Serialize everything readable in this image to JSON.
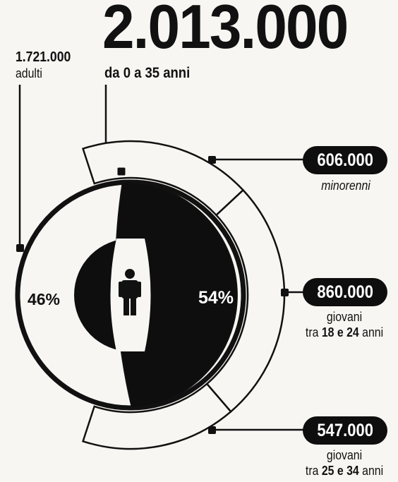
{
  "header": {
    "total": "2.013.000",
    "subtitle": "da 0 a 35 anni"
  },
  "adults": {
    "value": "1.721.000",
    "label": "adulti"
  },
  "groups": [
    {
      "value": "606.000",
      "label": "minorenni"
    },
    {
      "value": "860.000",
      "label_prefix": "giovani",
      "label_mid": "tra",
      "age_from": "18",
      "conj": "e",
      "age_to": "24",
      "label_suffix": "anni"
    },
    {
      "value": "547.000",
      "label_prefix": "giovani",
      "label_mid": "tra",
      "age_from": "25",
      "conj": "e",
      "age_to": "34",
      "label_suffix": "anni"
    }
  ],
  "chart_data": {
    "type": "pie",
    "slices": [
      {
        "label": "46%",
        "value": 46,
        "color": "#f7f6f2"
      },
      {
        "label": "54%",
        "value": 54,
        "color": "#0e0e0e"
      }
    ],
    "outer_segments": [
      {
        "value": 606000
      },
      {
        "value": 860000
      },
      {
        "value": 547000
      }
    ]
  }
}
